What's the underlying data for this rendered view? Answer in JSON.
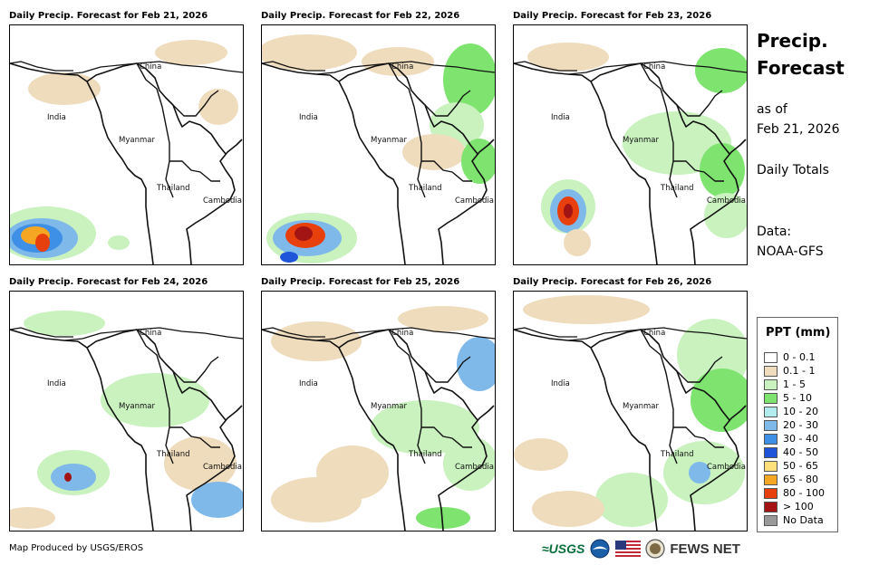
{
  "panels": [
    {
      "title": "Daily Precip. Forecast for Feb 21, 2026"
    },
    {
      "title": "Daily Precip. Forecast for Feb 22, 2026"
    },
    {
      "title": "Daily Precip. Forecast for Feb 23, 2026"
    },
    {
      "title": "Daily Precip. Forecast for Feb 24, 2026"
    },
    {
      "title": "Daily Precip. Forecast for Feb 25, 2026"
    },
    {
      "title": "Daily Precip. Forecast for Feb 26, 2026"
    }
  ],
  "map_labels": {
    "china": "China",
    "india": "India",
    "myanmar": "Myanmar",
    "thailand": "Thailand",
    "cambodia": "Cambodia"
  },
  "side": {
    "title_line1": "Precip.",
    "title_line2": "Forecast",
    "asof_line1": "as of",
    "asof_line2": "Feb 21, 2026",
    "period": "Daily Totals",
    "data_line1": "Data:",
    "data_line2": "NOAA-GFS"
  },
  "legend": {
    "title": "PPT (mm)",
    "items": [
      {
        "label": "0 - 0.1",
        "color": "#ffffff"
      },
      {
        "label": "0.1 - 1",
        "color": "#eedcbc"
      },
      {
        "label": "1 - 5",
        "color": "#c9f2bf"
      },
      {
        "label": "5 - 10",
        "color": "#7ee36f"
      },
      {
        "label": "10 - 20",
        "color": "#b3ecef"
      },
      {
        "label": "20 - 30",
        "color": "#7fb9ea"
      },
      {
        "label": "30 - 40",
        "color": "#3e8fe6"
      },
      {
        "label": "40 - 50",
        "color": "#1f55d8"
      },
      {
        "label": "50 - 65",
        "color": "#ffe07a"
      },
      {
        "label": "65 - 80",
        "color": "#f5a623"
      },
      {
        "label": "80 - 100",
        "color": "#e8400c"
      },
      {
        "label": "> 100",
        "color": "#a31414"
      },
      {
        "label": "No Data",
        "color": "#999999"
      }
    ]
  },
  "footer": {
    "credit": "Map Produced by USGS/EROS",
    "usgs": "≈USGS",
    "fews": "FEWS NET"
  }
}
